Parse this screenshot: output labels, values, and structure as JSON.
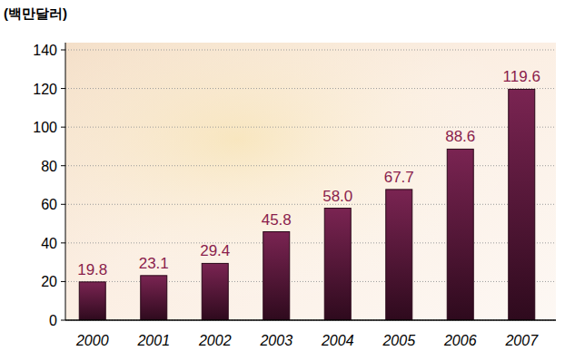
{
  "chart_data": {
    "type": "bar",
    "ylabel": "(백만달러)",
    "categories": [
      "2000",
      "2001",
      "2002",
      "2003",
      "2004",
      "2005",
      "2006",
      "2007"
    ],
    "values": [
      19.8,
      23.1,
      29.4,
      45.8,
      58.0,
      67.7,
      88.6,
      119.6
    ],
    "value_labels": [
      "19.8",
      "23.1",
      "29.4",
      "45.8",
      "58.0",
      "67.7",
      "88.6",
      "119.6"
    ],
    "color": "#7a2452",
    "ylim": [
      0,
      140
    ],
    "yticks": [
      0,
      20,
      40,
      60,
      80,
      100,
      120,
      140
    ],
    "grid": true,
    "data_labels": true
  }
}
